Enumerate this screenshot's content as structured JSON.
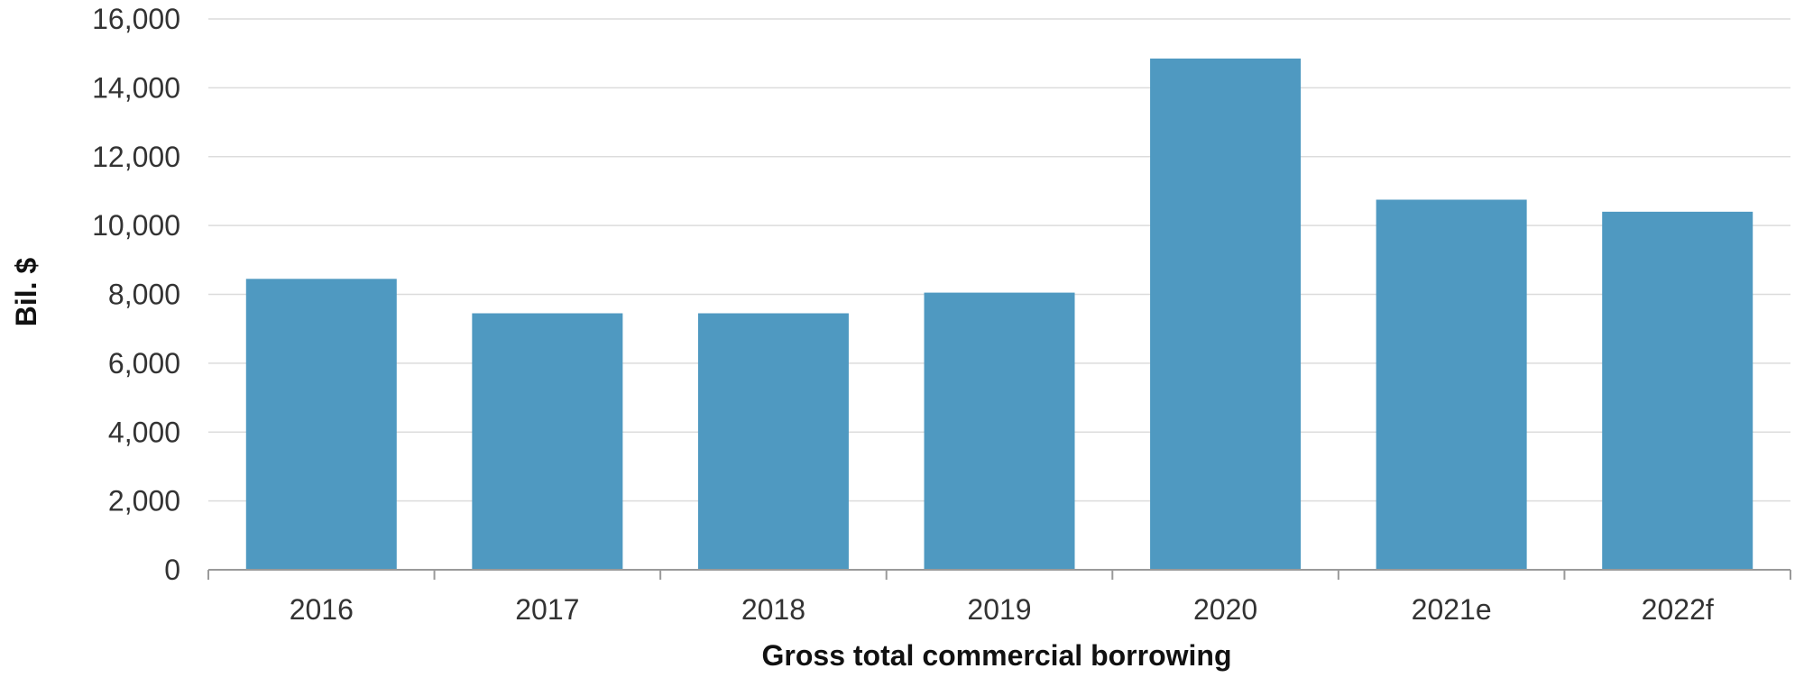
{
  "chart_data": {
    "type": "bar",
    "categories": [
      "2016",
      "2017",
      "2018",
      "2019",
      "2020",
      "2021e",
      "2022f"
    ],
    "values": [
      8450,
      7450,
      7450,
      8050,
      14850,
      10750,
      10400
    ],
    "title": "",
    "xlabel": "Gross total commercial borrowing",
    "ylabel": "Bil. $",
    "ylim": [
      0,
      16000
    ],
    "yticks": [
      "0",
      "2,000",
      "4,000",
      "6,000",
      "8,000",
      "10,000",
      "12,000",
      "14,000",
      "16,000"
    ],
    "grid": true,
    "legend": "none",
    "bar_color": "#4f99c1"
  }
}
